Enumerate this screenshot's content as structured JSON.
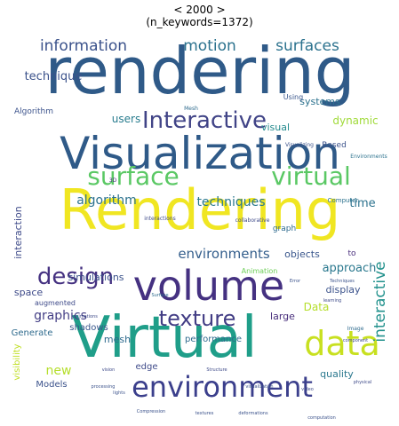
{
  "title_line1": "< 2000 >",
  "title_line2": "(n_keywords=1372)",
  "chart_data": {
    "type": "wordcloud",
    "title": "< 2000 > (n_keywords=1372)",
    "grid": false,
    "words": [
      {
        "text": "rendering",
        "weight": 96,
        "color": "#2f5a88"
      },
      {
        "text": "Visualization",
        "weight": 80,
        "color": "#2f5a88"
      },
      {
        "text": "Rendering",
        "weight": 74,
        "color": "#f0e622"
      },
      {
        "text": "Virtual",
        "weight": 70,
        "color": "#1f9e89"
      },
      {
        "text": "volume",
        "weight": 56,
        "color": "#453181"
      },
      {
        "text": "environment",
        "weight": 44,
        "color": "#3b3f8c"
      },
      {
        "text": "data",
        "weight": 42,
        "color": "#c8e020"
      },
      {
        "text": "surface",
        "weight": 36,
        "color": "#5ac864"
      },
      {
        "text": "virtual",
        "weight": 36,
        "color": "#5ac864"
      },
      {
        "text": "Interactive",
        "weight": 32,
        "color": "#414487"
      },
      {
        "text": "design",
        "weight": 30,
        "color": "#453181"
      },
      {
        "text": "texture",
        "weight": 28,
        "color": "#433e85"
      },
      {
        "text": "information",
        "weight": 19,
        "color": "#3b528b"
      },
      {
        "text": "motion",
        "weight": 19,
        "color": "#2c728e"
      },
      {
        "text": "surfaces",
        "weight": 19,
        "color": "#2c728e"
      },
      {
        "text": "interactive",
        "weight": 19,
        "color": "#21918c"
      },
      {
        "text": "environments",
        "weight": 17,
        "color": "#355f8d"
      },
      {
        "text": "algorithm",
        "weight": 16,
        "color": "#2c728e"
      },
      {
        "text": "techniques",
        "weight": 15,
        "color": "#2a788e"
      },
      {
        "text": "graphics",
        "weight": 16,
        "color": "#433e85"
      },
      {
        "text": "technique",
        "weight": 14,
        "color": "#3b528b"
      },
      {
        "text": "new",
        "weight": 15,
        "color": "#b5de2b"
      },
      {
        "text": "users",
        "weight": 13,
        "color": "#287c8e"
      },
      {
        "text": "time",
        "weight": 14,
        "color": "#2c728e"
      },
      {
        "text": "dynamic",
        "weight": 13,
        "color": "#a0da39"
      },
      {
        "text": "visual",
        "weight": 12,
        "color": "#238a8d"
      },
      {
        "text": "systems",
        "weight": 12,
        "color": "#2c728e"
      },
      {
        "text": "interaction",
        "weight": 12,
        "color": "#3e4a89"
      },
      {
        "text": "simulations",
        "weight": 12,
        "color": "#3b528b"
      },
      {
        "text": "objects",
        "weight": 12,
        "color": "#39568c"
      },
      {
        "text": "approach",
        "weight": 14,
        "color": "#2a788e"
      },
      {
        "text": "space",
        "weight": 12,
        "color": "#3e4a89"
      },
      {
        "text": "display",
        "weight": 12,
        "color": "#3b528b"
      },
      {
        "text": "Data",
        "weight": 13,
        "color": "#b5de2b"
      },
      {
        "text": "performance",
        "weight": 11,
        "color": "#2f6b8e"
      },
      {
        "text": "shadows",
        "weight": 11,
        "color": "#39568c"
      },
      {
        "text": "mesh",
        "weight": 12,
        "color": "#2f6b8e"
      },
      {
        "text": "large",
        "weight": 12,
        "color": "#472d7b"
      },
      {
        "text": "quality",
        "weight": 12,
        "color": "#2a788e"
      },
      {
        "text": "Models",
        "weight": 11,
        "color": "#3b528b"
      },
      {
        "text": "edge",
        "weight": 11,
        "color": "#3e4a89"
      },
      {
        "text": "visibility",
        "weight": 11,
        "color": "#c0df25"
      },
      {
        "text": "Generate",
        "weight": 11,
        "color": "#2f6b8e"
      },
      {
        "text": "graph",
        "weight": 10,
        "color": "#2f6b8e"
      },
      {
        "text": "Algorithm",
        "weight": 10,
        "color": "#3b528b"
      },
      {
        "text": "Based",
        "weight": 10,
        "color": "#3b528b"
      },
      {
        "text": "Animation",
        "weight": 9,
        "color": "#6ece58"
      },
      {
        "text": "augmented",
        "weight": 9,
        "color": "#3e4a89"
      },
      {
        "text": "Using",
        "weight": 9,
        "color": "#39568c"
      },
      {
        "text": "to",
        "weight": 10,
        "color": "#472d7b"
      },
      {
        "text": "Computer",
        "weight": 8,
        "color": "#2c728e"
      },
      {
        "text": "Environments",
        "weight": 7,
        "color": "#2c728e"
      },
      {
        "text": "collaborative",
        "weight": 7,
        "color": "#3e4a89"
      },
      {
        "text": "interactions",
        "weight": 7,
        "color": "#3e4a89"
      },
      {
        "text": "Visualizing",
        "weight": 7,
        "color": "#3b528b"
      },
      {
        "text": "Image",
        "weight": 7,
        "color": "#2f6b8e"
      },
      {
        "text": "Mesh",
        "weight": 7,
        "color": "#2f6b8e"
      },
      {
        "text": "3D",
        "weight": 7,
        "color": "#472d7b"
      },
      {
        "text": "animations",
        "weight": 6,
        "color": "#3e4a89"
      },
      {
        "text": "Surface",
        "weight": 6,
        "color": "#2f6b8e"
      },
      {
        "text": "Structure",
        "weight": 6,
        "color": "#3e4a89"
      },
      {
        "text": "video",
        "weight": 6,
        "color": "#3e4a89"
      },
      {
        "text": "vision",
        "weight": 6,
        "color": "#3e4a89"
      },
      {
        "text": "lights",
        "weight": 6,
        "color": "#3b528b"
      },
      {
        "text": "processing",
        "weight": 6,
        "color": "#3b528b"
      },
      {
        "text": "Error",
        "weight": 5,
        "color": "#3b528b"
      },
      {
        "text": "Techniques",
        "weight": 5,
        "color": "#3b528b"
      },
      {
        "text": "learning",
        "weight": 5,
        "color": "#3e4a89"
      },
      {
        "text": "component",
        "weight": 5,
        "color": "#3e4a89"
      },
      {
        "text": "physical",
        "weight": 5,
        "color": "#3e4a89"
      },
      {
        "text": "textures",
        "weight": 5,
        "color": "#3b528b"
      },
      {
        "text": "deformations",
        "weight": 5,
        "color": "#3b528b"
      },
      {
        "text": "computation",
        "weight": 5,
        "color": "#3b528b"
      },
      {
        "text": "visualization",
        "weight": 5,
        "color": "#3b528b"
      },
      {
        "text": "Compression",
        "weight": 5,
        "color": "#3b528b"
      }
    ]
  }
}
